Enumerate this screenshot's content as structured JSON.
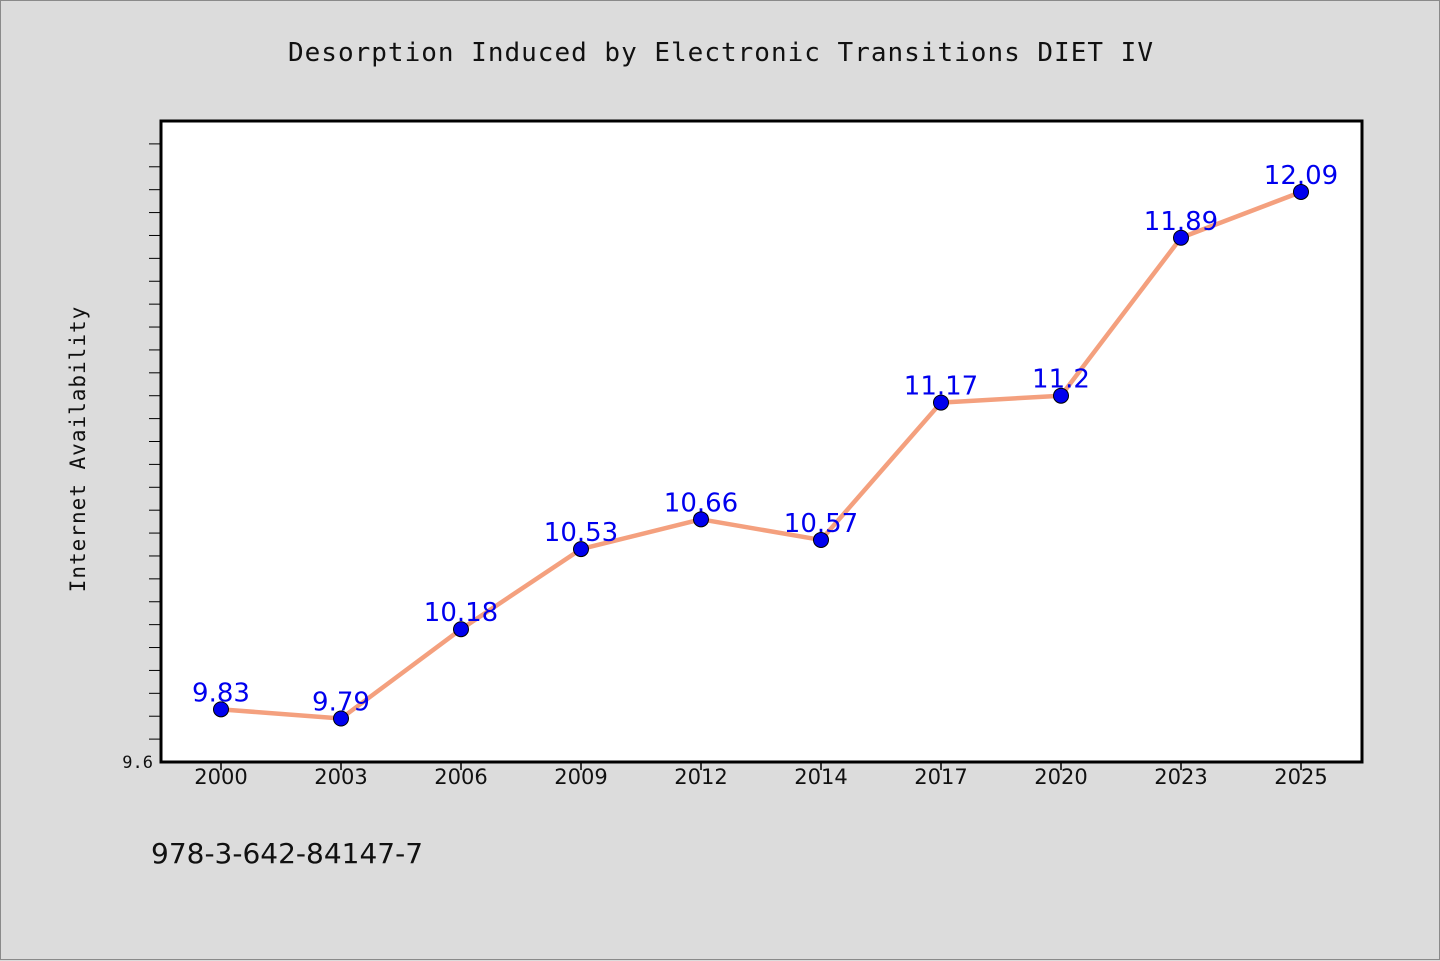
{
  "chart_data": {
    "type": "line",
    "title": "Desorption Induced by Electronic Transitions DIET IV",
    "xlabel": "",
    "ylabel": "Internet Availability",
    "categories": [
      "2000",
      "2003",
      "2006",
      "2009",
      "2012",
      "2014",
      "2017",
      "2020",
      "2023",
      "2025"
    ],
    "series": [
      {
        "values": [
          9.83,
          9.79,
          10.18,
          10.53,
          10.66,
          10.57,
          11.17,
          11.2,
          11.89,
          12.09
        ],
        "labels": [
          "9.83",
          "9.79",
          "10.18",
          "10.53",
          "10.66",
          "10.57",
          "11.17",
          "11.2",
          "11.89",
          "12.09"
        ],
        "line_color": "#f4a07e",
        "marker_color": "#0000ee"
      }
    ],
    "ylim": [
      9.6,
      12.4
    ],
    "y_tick_labels": [
      "9.6"
    ],
    "grid": false,
    "legend": "none"
  },
  "footer": {
    "isbn": "978-3-642-84147-7"
  },
  "colors": {
    "background": "#dcdcdc",
    "plot_background": "#ffffff",
    "label": "#0000ee"
  }
}
